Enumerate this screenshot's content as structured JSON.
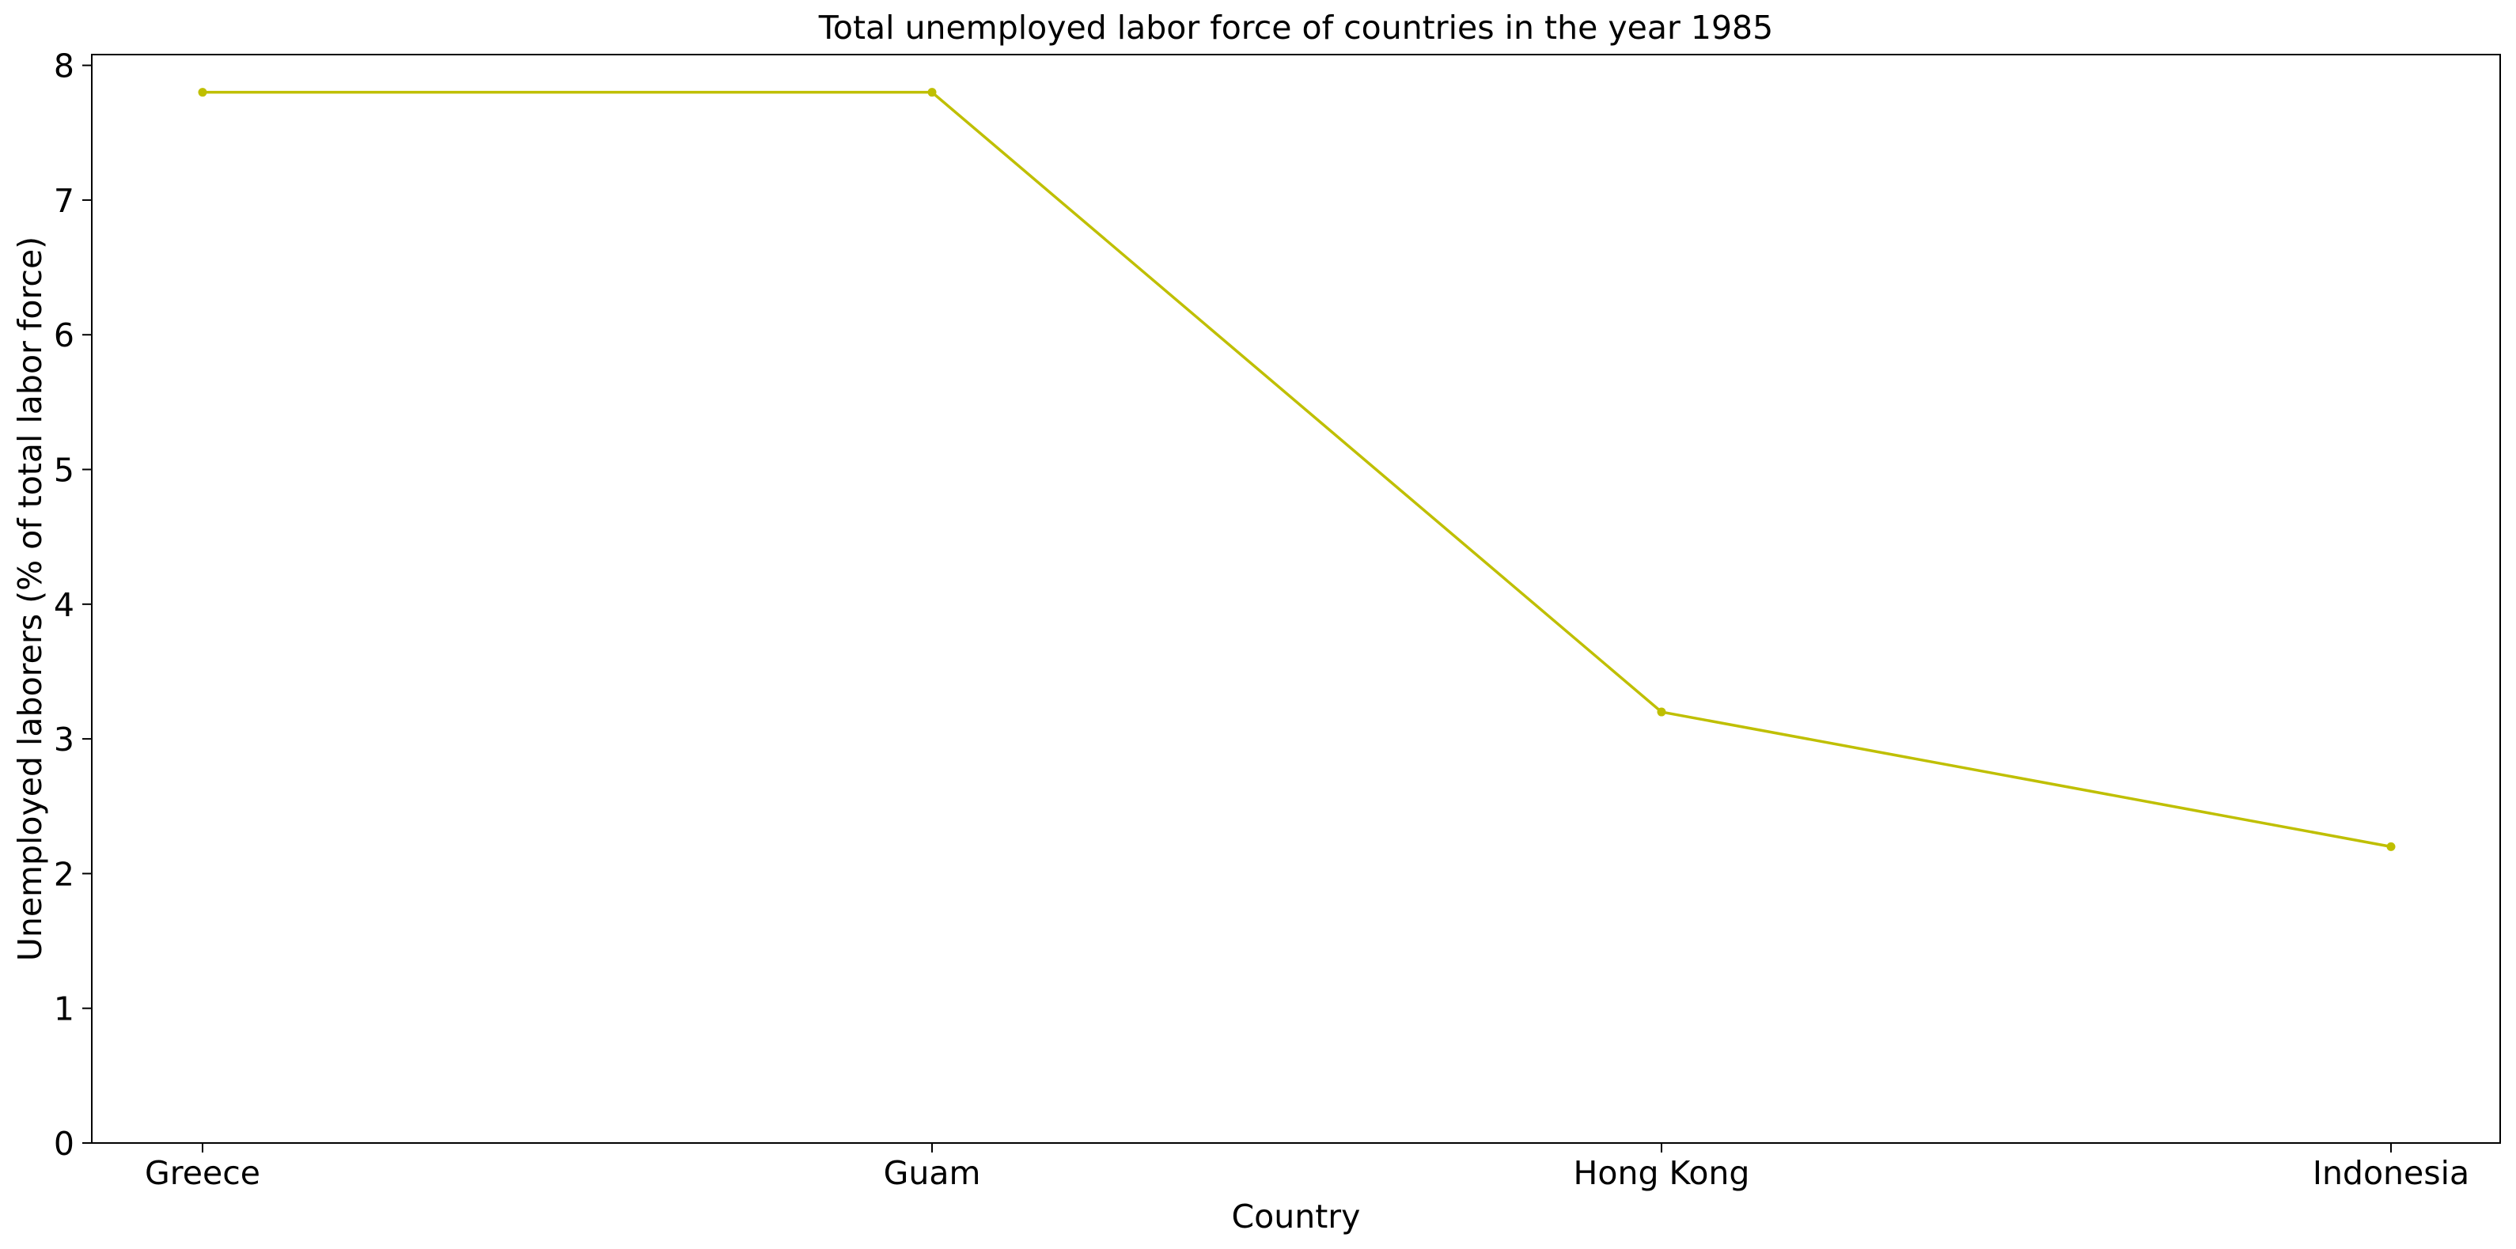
{
  "chart_data": {
    "type": "line",
    "title": "Total unemployed labor force of countries in the year 1985",
    "xlabel": "Country",
    "ylabel": "Unemployed laborers (% of total labor force)",
    "categories": [
      "Greece",
      "Guam",
      "Hong Kong",
      "Indonesia"
    ],
    "series": [
      {
        "values": [
          7.8,
          7.8,
          3.2,
          2.2
        ],
        "color": "#bfbf00"
      }
    ],
    "ylim": [
      0,
      8.08
    ],
    "yticks": [
      0,
      1,
      2,
      3,
      4,
      5,
      6,
      7,
      8
    ],
    "grid": false,
    "legend": "none"
  }
}
